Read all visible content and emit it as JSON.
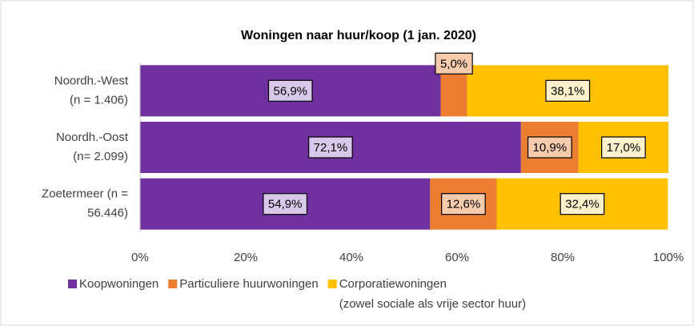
{
  "chart_data": {
    "type": "stacked_barh",
    "title": "Woningen naar huur/koop (1 jan. 2020)",
    "categories": [
      [
        "Noordh.-West",
        "(n = 1.406)"
      ],
      [
        "Noordh.-Oost",
        "(n= 2.099)"
      ],
      [
        "Zoetermeer (n =",
        "56.446)"
      ]
    ],
    "series": [
      {
        "name": "Koopwoningen",
        "color": "#7030a0",
        "label_fill": "#d9c8ea",
        "values": [
          56.9,
          72.1,
          54.9
        ],
        "value_labels": [
          "56,9%",
          "72,1%",
          "54,9%"
        ]
      },
      {
        "name": "Particuliere huurwoningen",
        "color": "#ed7d31",
        "label_fill": "#f8cbad",
        "values": [
          5.0,
          10.9,
          12.6
        ],
        "value_labels": [
          "5,0%",
          "10,9%",
          "12,6%"
        ]
      },
      {
        "name": "Corporatiewoningen",
        "legend_subtitle": "(zowel sociale als vrije sector huur)",
        "color": "#ffc000",
        "label_fill": "#fff2cc",
        "values": [
          38.1,
          17.0,
          32.4
        ],
        "value_labels": [
          "38,1%",
          "17,0%",
          "32,4%"
        ]
      }
    ],
    "xlim": [
      0,
      100
    ],
    "xticks": [
      {
        "value": 0,
        "label": "0%"
      },
      {
        "value": 20,
        "label": "20%"
      },
      {
        "value": 40,
        "label": "40%"
      },
      {
        "value": 60,
        "label": "60%"
      },
      {
        "value": 80,
        "label": "80%"
      },
      {
        "value": 100,
        "label": "100%"
      }
    ],
    "grid": false,
    "legend": "bottom"
  }
}
